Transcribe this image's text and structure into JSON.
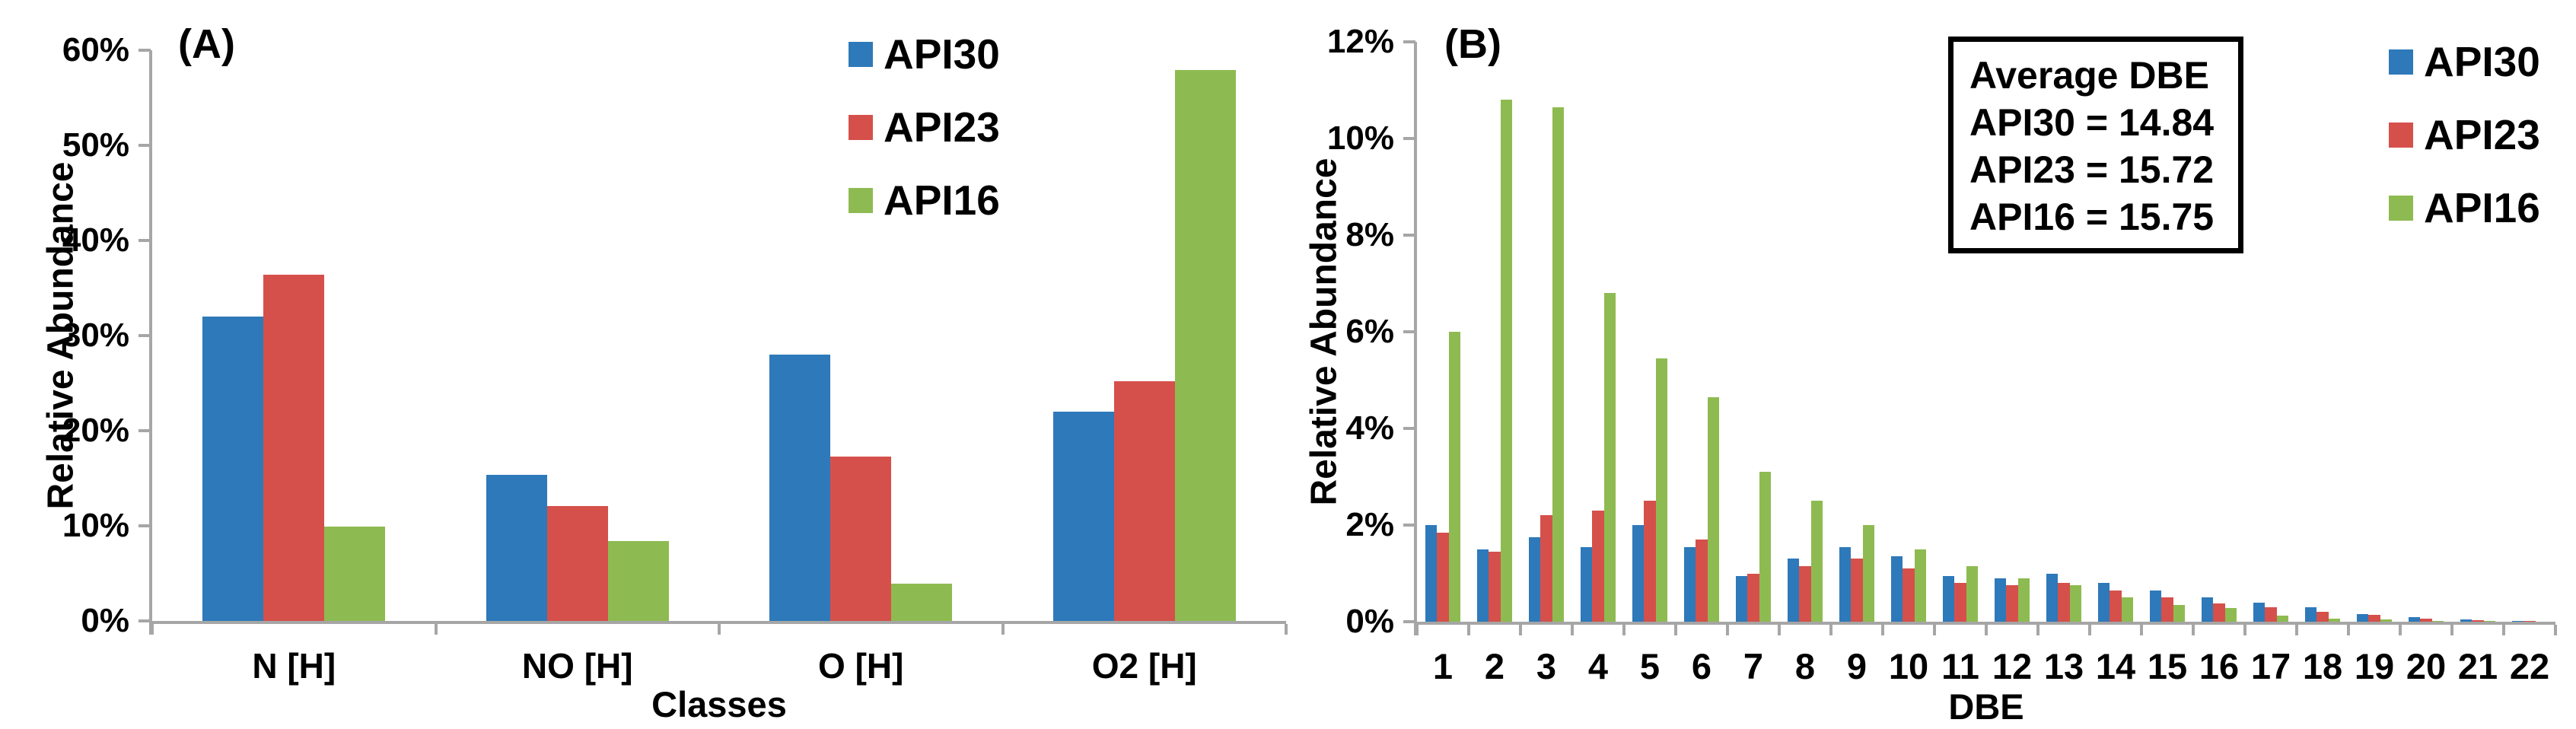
{
  "colors": {
    "api30_blue": "#2E79B9",
    "api23_red": "#D5504B",
    "api16_green": "#8EBB51",
    "axis_gray": "#A6A6A6",
    "text_black": "#000000"
  },
  "chart_data": [
    {
      "type": "bar",
      "panel_label": "(A)",
      "xlabel": "Classes",
      "ylabel": "Relative Abundance",
      "ylim": [
        0,
        60
      ],
      "ytick_step": 10,
      "ytick_suffix": "%",
      "grid": false,
      "legend_position": "top-right",
      "categories": [
        "N [H]",
        "NO [H]",
        "O [H]",
        "O2 [H]"
      ],
      "series": [
        {
          "name": "API30",
          "color": "#2E79B9",
          "values": [
            32.0,
            15.4,
            28.0,
            22.0
          ]
        },
        {
          "name": "API23",
          "color": "#D5504B",
          "values": [
            36.4,
            12.1,
            17.3,
            25.2
          ]
        },
        {
          "name": "API16",
          "color": "#8EBB51",
          "values": [
            9.9,
            8.4,
            3.9,
            57.9
          ]
        }
      ]
    },
    {
      "type": "bar",
      "panel_label": "(B)",
      "xlabel": "DBE",
      "ylabel": "Relative Abundance",
      "ylim": [
        0,
        12
      ],
      "ytick_step": 2,
      "ytick_suffix": "%",
      "grid": false,
      "legend_position": "top-right",
      "categories": [
        "1",
        "2",
        "3",
        "4",
        "5",
        "6",
        "7",
        "8",
        "9",
        "10",
        "11",
        "12",
        "13",
        "14",
        "15",
        "16",
        "17",
        "18",
        "19",
        "20",
        "21",
        "22"
      ],
      "series": [
        {
          "name": "API30",
          "color": "#2E79B9",
          "values": [
            2.0,
            1.5,
            1.75,
            1.55,
            2.0,
            1.55,
            0.95,
            1.3,
            1.55,
            1.35,
            0.95,
            0.9,
            1.0,
            0.8,
            0.65,
            0.5,
            0.4,
            0.3,
            0.16,
            0.1,
            0.05,
            0.02
          ]
        },
        {
          "name": "API23",
          "color": "#D5504B",
          "values": [
            1.85,
            1.45,
            2.2,
            2.3,
            2.5,
            1.7,
            1.0,
            1.15,
            1.3,
            1.1,
            0.8,
            0.75,
            0.8,
            0.65,
            0.5,
            0.38,
            0.3,
            0.2,
            0.14,
            0.07,
            0.03,
            0.01
          ]
        },
        {
          "name": "API16",
          "color": "#8EBB51",
          "values": [
            6.0,
            10.8,
            10.65,
            6.8,
            5.45,
            4.65,
            3.1,
            2.5,
            2.0,
            1.5,
            1.15,
            0.9,
            0.75,
            0.5,
            0.35,
            0.28,
            0.12,
            0.06,
            0.04,
            0.02,
            0.01,
            0.0
          ]
        }
      ],
      "annotation_box": {
        "title": "Average DBE",
        "lines": [
          "API30 = 14.84",
          "API23 = 15.72",
          "API16 = 15.75"
        ]
      }
    }
  ]
}
